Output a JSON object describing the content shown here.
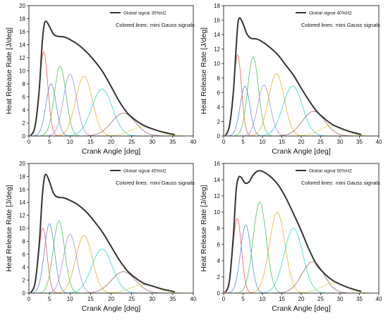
{
  "figure": {
    "note_prefix": "Colored lines:",
    "note_suffix": "mini Gauss signals"
  },
  "chart_data": [
    {
      "type": "line",
      "legend": "Global signal 35%H2",
      "xlabel": "Crank Angle [deg]",
      "ylabel": "Heat Release Rate [J/deg]",
      "xlim": [
        0,
        40
      ],
      "ylim": [
        0,
        20
      ],
      "xticks": [
        "0",
        "5",
        "10",
        "15",
        "20",
        "25",
        "30",
        "35",
        "40"
      ],
      "yticks": [
        "0",
        "2",
        "4",
        "6",
        "8",
        "10",
        "12",
        "14",
        "16",
        "18",
        "20"
      ],
      "global_color": "#333333",
      "series": [
        {
          "color": "#ef5a5a",
          "gauss": [
            12.9,
            3.6,
            1.0
          ]
        },
        {
          "color": "#5a8fd8",
          "gauss": [
            8.0,
            5.4,
            1.25
          ]
        },
        {
          "color": "#4fc55a",
          "gauss": [
            10.7,
            7.6,
            1.4
          ]
        },
        {
          "color": "#a98ee0",
          "gauss": [
            9.5,
            10.0,
            1.6
          ]
        },
        {
          "color": "#e5b32a",
          "gauss": [
            9.2,
            13.4,
            2.0
          ]
        },
        {
          "color": "#35d5cf",
          "gauss": [
            7.2,
            17.8,
            2.5
          ]
        },
        {
          "color": "#a06a6a",
          "gauss": [
            3.5,
            23.0,
            2.9
          ]
        },
        {
          "color": "#d9d95a",
          "gauss": [
            1.4,
            28.0,
            3.2
          ]
        }
      ],
      "global_points": [
        [
          0.5,
          0.1
        ],
        [
          1.5,
          1.5
        ],
        [
          2.5,
          7.0
        ],
        [
          3.2,
          14.0
        ],
        [
          3.7,
          17.0
        ],
        [
          4.2,
          17.6
        ],
        [
          5.0,
          16.8
        ],
        [
          6.0,
          15.6
        ],
        [
          7.0,
          15.3
        ],
        [
          8.5,
          15.2
        ],
        [
          10.0,
          14.8
        ],
        [
          12.0,
          14.0
        ],
        [
          14.0,
          12.9
        ],
        [
          16.0,
          11.5
        ],
        [
          18.0,
          9.8
        ],
        [
          20.0,
          7.6
        ],
        [
          22.0,
          5.3
        ],
        [
          24.0,
          3.5
        ],
        [
          26.0,
          2.4
        ],
        [
          28.0,
          1.6
        ],
        [
          30.0,
          1.1
        ],
        [
          32.0,
          0.7
        ],
        [
          34.0,
          0.4
        ],
        [
          35.5,
          0.2
        ]
      ]
    },
    {
      "type": "line",
      "legend": "Global signal 40%H2",
      "xlabel": "Crank Angle [deg]",
      "ylabel": "Heat Release Rate [J/deg]",
      "xlim": [
        0,
        40
      ],
      "ylim": [
        0,
        18
      ],
      "xticks": [
        "0",
        "5",
        "10",
        "15",
        "20",
        "25",
        "30",
        "35",
        "40"
      ],
      "yticks": [
        "0",
        "2",
        "4",
        "6",
        "8",
        "10",
        "12",
        "14",
        "16",
        "18"
      ],
      "global_color": "#333333",
      "series": [
        {
          "color": "#ef5a5a",
          "gauss": [
            11.2,
            3.6,
            1.0
          ]
        },
        {
          "color": "#5a8fd8",
          "gauss": [
            6.9,
            5.5,
            1.25
          ]
        },
        {
          "color": "#4fc55a",
          "gauss": [
            10.9,
            7.6,
            1.4
          ]
        },
        {
          "color": "#a98ee0",
          "gauss": [
            7.0,
            10.4,
            1.6
          ]
        },
        {
          "color": "#e5b32a",
          "gauss": [
            8.6,
            13.6,
            2.0
          ]
        },
        {
          "color": "#35d5cf",
          "gauss": [
            6.9,
            17.8,
            2.5
          ]
        },
        {
          "color": "#a06a6a",
          "gauss": [
            3.4,
            23.2,
            2.9
          ]
        },
        {
          "color": "#d9d95a",
          "gauss": [
            1.4,
            28.0,
            3.2
          ]
        }
      ],
      "global_points": [
        [
          0.5,
          0.1
        ],
        [
          1.5,
          1.4
        ],
        [
          2.5,
          6.0
        ],
        [
          3.2,
          12.0
        ],
        [
          3.7,
          15.6
        ],
        [
          4.2,
          16.3
        ],
        [
          5.0,
          15.5
        ],
        [
          6.0,
          14.1
        ],
        [
          7.0,
          13.5
        ],
        [
          8.5,
          13.4
        ],
        [
          10.0,
          13.0
        ],
        [
          12.0,
          12.2
        ],
        [
          14.0,
          11.2
        ],
        [
          16.0,
          9.8
        ],
        [
          18.0,
          8.4
        ],
        [
          20.0,
          6.6
        ],
        [
          22.0,
          4.9
        ],
        [
          24.0,
          3.4
        ],
        [
          26.0,
          2.4
        ],
        [
          28.0,
          1.6
        ],
        [
          30.0,
          1.1
        ],
        [
          32.0,
          0.7
        ],
        [
          34.0,
          0.4
        ],
        [
          35.5,
          0.2
        ]
      ]
    },
    {
      "type": "line",
      "legend": "Global signal 45%H2",
      "xlabel": "Crank Angle [deg]",
      "ylabel": "Heat Release Rate [J/deg]",
      "xlim": [
        0,
        40
      ],
      "ylim": [
        0,
        20
      ],
      "xticks": [
        "0",
        "5",
        "10",
        "15",
        "20",
        "25",
        "30",
        "35",
        "40"
      ],
      "yticks": [
        "0",
        "2",
        "4",
        "6",
        "8",
        "10",
        "12",
        "14",
        "16",
        "18",
        "20"
      ],
      "global_color": "#333333",
      "series": [
        {
          "color": "#ef5a5a",
          "gauss": [
            10.0,
            3.4,
            1.0
          ]
        },
        {
          "color": "#5a8fd8",
          "gauss": [
            10.7,
            5.0,
            1.25
          ]
        },
        {
          "color": "#4fc55a",
          "gauss": [
            11.1,
            7.3,
            1.4
          ]
        },
        {
          "color": "#a98ee0",
          "gauss": [
            9.1,
            10.0,
            1.6
          ]
        },
        {
          "color": "#e5b32a",
          "gauss": [
            8.9,
            13.4,
            2.0
          ]
        },
        {
          "color": "#35d5cf",
          "gauss": [
            6.8,
            17.8,
            2.5
          ]
        },
        {
          "color": "#a06a6a",
          "gauss": [
            3.3,
            23.0,
            2.9
          ]
        },
        {
          "color": "#d9d95a",
          "gauss": [
            1.3,
            28.0,
            3.2
          ]
        }
      ],
      "global_points": [
        [
          0.5,
          0.1
        ],
        [
          1.5,
          1.6
        ],
        [
          2.5,
          7.5
        ],
        [
          3.2,
          14.5
        ],
        [
          3.7,
          17.6
        ],
        [
          4.2,
          18.3
        ],
        [
          5.0,
          17.2
        ],
        [
          6.0,
          15.4
        ],
        [
          7.0,
          14.8
        ],
        [
          8.5,
          14.7
        ],
        [
          10.0,
          14.3
        ],
        [
          12.0,
          13.6
        ],
        [
          14.0,
          12.5
        ],
        [
          16.0,
          11.0
        ],
        [
          18.0,
          9.3
        ],
        [
          20.0,
          7.2
        ],
        [
          22.0,
          5.1
        ],
        [
          24.0,
          3.4
        ],
        [
          26.0,
          2.3
        ],
        [
          28.0,
          1.5
        ],
        [
          30.0,
          1.1
        ],
        [
          32.0,
          0.7
        ],
        [
          34.0,
          0.4
        ],
        [
          35.5,
          0.2
        ]
      ]
    },
    {
      "type": "line",
      "legend": "Global signal 50%H2",
      "xlabel": "Crank Angle [deg]",
      "ylabel": "Heat Release Rate [J/deg]",
      "xlim": [
        0,
        40
      ],
      "ylim": [
        0,
        16
      ],
      "xticks": [
        "0",
        "5",
        "10",
        "15",
        "20",
        "25",
        "30",
        "35",
        "40"
      ],
      "yticks": [
        "0",
        "2",
        "4",
        "6",
        "8",
        "10",
        "12",
        "14",
        "16"
      ],
      "global_color": "#333333",
      "series": [
        {
          "color": "#ef5a5a",
          "gauss": [
            9.2,
            3.5,
            1.1
          ]
        },
        {
          "color": "#5a8fd8",
          "gauss": [
            8.4,
            5.7,
            1.35
          ]
        },
        {
          "color": "#4fc55a",
          "gauss": [
            11.2,
            9.3,
            1.7
          ]
        },
        {
          "color": "#e5b32a",
          "gauss": [
            10.0,
            13.8,
            2.0
          ]
        },
        {
          "color": "#35d5cf",
          "gauss": [
            8.0,
            18.0,
            2.4
          ]
        },
        {
          "color": "#a06a6a",
          "gauss": [
            3.9,
            23.0,
            2.8
          ]
        },
        {
          "color": "#d9d95a",
          "gauss": [
            1.3,
            28.5,
            3.2
          ]
        }
      ],
      "global_points": [
        [
          0.5,
          0.1
        ],
        [
          1.5,
          1.5
        ],
        [
          2.5,
          7.0
        ],
        [
          3.2,
          12.5
        ],
        [
          3.8,
          14.2
        ],
        [
          4.5,
          14.3
        ],
        [
          5.5,
          13.6
        ],
        [
          6.5,
          13.7
        ],
        [
          7.5,
          14.5
        ],
        [
          8.5,
          15.0
        ],
        [
          9.5,
          15.1
        ],
        [
          10.5,
          14.9
        ],
        [
          12.0,
          14.4
        ],
        [
          14.0,
          13.4
        ],
        [
          16.0,
          11.8
        ],
        [
          18.0,
          9.8
        ],
        [
          20.0,
          7.7
        ],
        [
          22.0,
          5.4
        ],
        [
          24.0,
          3.5
        ],
        [
          26.0,
          2.4
        ],
        [
          28.0,
          1.6
        ],
        [
          30.0,
          1.1
        ],
        [
          32.0,
          0.7
        ],
        [
          34.0,
          0.4
        ],
        [
          35.5,
          0.2
        ]
      ]
    }
  ]
}
